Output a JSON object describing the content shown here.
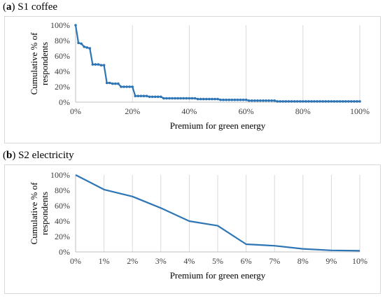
{
  "panels": [
    {
      "letter": "a",
      "title": "S1 coffee"
    },
    {
      "letter": "b",
      "title": "S2 electricity"
    }
  ],
  "colors": {
    "series": "#2e75b6",
    "grid": "#d9d9d9",
    "axis": "#bfbfbf"
  },
  "chart_data": [
    {
      "type": "line",
      "title": "S1 coffee",
      "xlabel": "Premium for green energy",
      "ylabel": "Cumulative % of respondents",
      "xlim": [
        0,
        100
      ],
      "ylim": [
        0,
        100
      ],
      "x_ticks": [
        "0%",
        "20%",
        "40%",
        "60%",
        "80%",
        "100%"
      ],
      "y_ticks": [
        "0%",
        "20%",
        "40%",
        "60%",
        "80%",
        "100%"
      ],
      "grid": "vertical",
      "markers": true,
      "x": [
        0,
        1,
        2,
        3,
        4,
        5,
        6,
        7,
        8,
        9,
        10,
        11,
        12,
        13,
        14,
        15,
        16,
        17,
        18,
        19,
        20,
        21,
        22,
        23,
        24,
        25,
        26,
        27,
        28,
        29,
        30,
        31,
        32,
        33,
        34,
        35,
        36,
        37,
        38,
        39,
        40,
        41,
        42,
        43,
        44,
        45,
        46,
        47,
        48,
        49,
        50,
        51,
        52,
        53,
        54,
        55,
        56,
        57,
        58,
        59,
        60,
        61,
        62,
        63,
        64,
        65,
        66,
        67,
        68,
        69,
        70,
        71,
        72,
        73,
        74,
        75,
        76,
        77,
        78,
        79,
        80,
        81,
        82,
        83,
        84,
        85,
        86,
        87,
        88,
        89,
        90,
        91,
        92,
        93,
        94,
        95,
        96,
        97,
        98,
        99,
        100
      ],
      "values": [
        100,
        77,
        76,
        72,
        71,
        70,
        49,
        49,
        49,
        48,
        48,
        25,
        25,
        24,
        24,
        24,
        20,
        20,
        20,
        20,
        20,
        8,
        8,
        8,
        8,
        8,
        7,
        7,
        7,
        7,
        7,
        5,
        5,
        5,
        5,
        5,
        5,
        5,
        5,
        5,
        5,
        5,
        5,
        4,
        4,
        4,
        4,
        4,
        4,
        4,
        4,
        3,
        3,
        3,
        3,
        3,
        3,
        3,
        3,
        3,
        3,
        2,
        2,
        2,
        2,
        2,
        2,
        2,
        2,
        2,
        2,
        1,
        1,
        1,
        1,
        1,
        1,
        1,
        1,
        1,
        1,
        1,
        1,
        1,
        1,
        1,
        1,
        1,
        1,
        1,
        1,
        1,
        1,
        1,
        1,
        1,
        1,
        1,
        1,
        1,
        1
      ]
    },
    {
      "type": "line",
      "title": "S2 electricity",
      "xlabel": "Premium for green energy",
      "ylabel": "Cumulative % of respondents",
      "categories": [
        "0%",
        "1%",
        "2%",
        "3%",
        "4%",
        "5%",
        "6%",
        "7%",
        "8%",
        "9%",
        "10%"
      ],
      "values": [
        100,
        81,
        72,
        57,
        40,
        34,
        10,
        8,
        4,
        2,
        1.5
      ],
      "ylim": [
        0,
        100
      ],
      "y_ticks": [
        "0%",
        "20%",
        "40%",
        "60%",
        "80%",
        "100%"
      ],
      "grid": "vertical",
      "markers": false
    }
  ]
}
